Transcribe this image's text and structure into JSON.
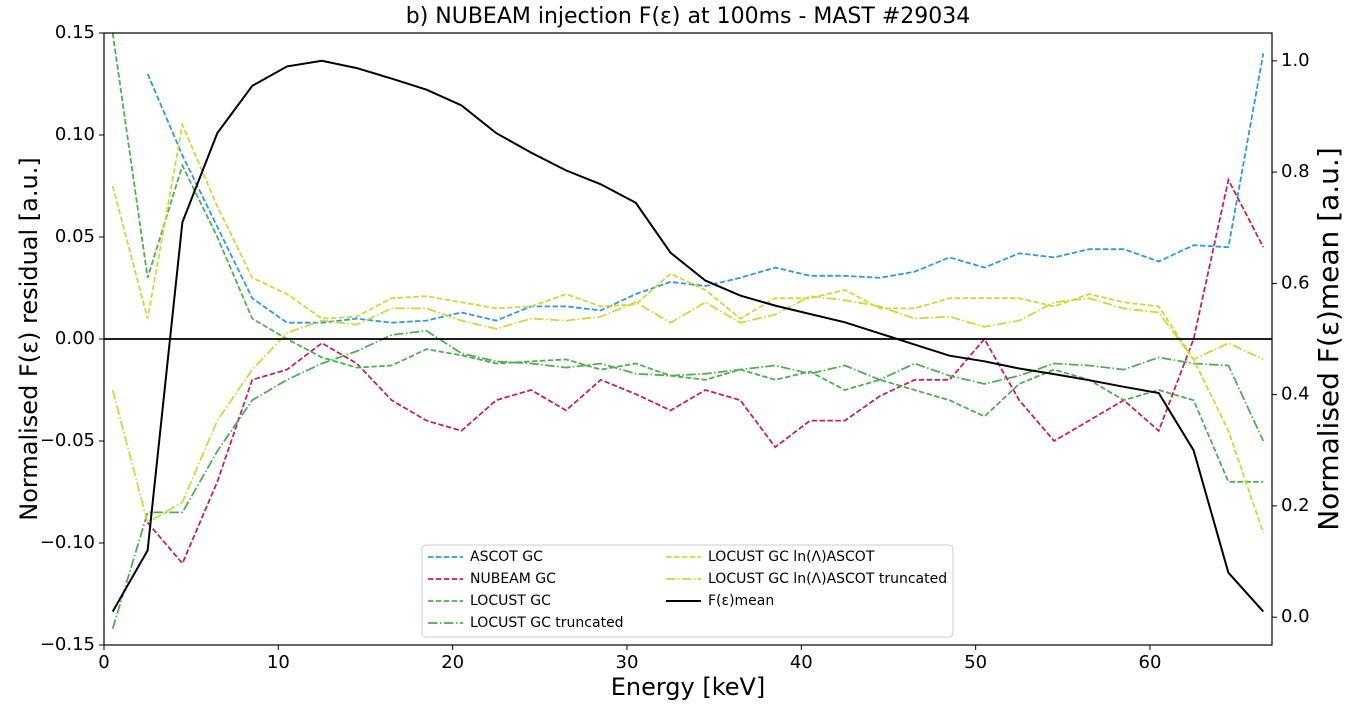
{
  "chart_data": {
    "type": "line",
    "title": "b) NUBEAM injection F(ε) at 100ms - MAST #29034",
    "x_label": "Energy [keV]",
    "y_label": "Normalised F(ε) residual [a.u.]",
    "y2_label": "Normalised F(ε)mean [a.u.]",
    "x": [
      0.5,
      2.5,
      4.5,
      6.5,
      8.5,
      10.5,
      12.5,
      14.5,
      16.5,
      18.5,
      20.5,
      22.5,
      24.5,
      26.5,
      28.5,
      30.5,
      32.5,
      34.5,
      36.5,
      38.5,
      40.5,
      42.5,
      44.5,
      46.5,
      48.5,
      50.5,
      52.5,
      54.5,
      56.5,
      58.5,
      60.5,
      62.5,
      64.5,
      66.5
    ],
    "xlim": [
      0,
      67
    ],
    "xticks": [
      0,
      10,
      20,
      30,
      40,
      50,
      60
    ],
    "ylim": [
      -0.15,
      0.15
    ],
    "yticks": [
      {
        "value": -0.15,
        "label": "−0.15"
      },
      {
        "value": -0.1,
        "label": "−0.10"
      },
      {
        "value": -0.05,
        "label": "−0.05"
      },
      {
        "value": 0,
        "label": "0.00"
      },
      {
        "value": 0.05,
        "label": "0.05"
      },
      {
        "value": 0.1,
        "label": "0.10"
      },
      {
        "value": 0.15,
        "label": "0.15"
      }
    ],
    "y2lim": [
      -0.05,
      1.05
    ],
    "y2ticks": [
      {
        "value": 0,
        "label": "0.0"
      },
      0.2,
      0.4,
      0.6,
      0.8,
      {
        "value": 1,
        "label": "1.0"
      }
    ],
    "hlines": [
      0
    ],
    "legend": "lower center",
    "series": [
      {
        "name": "ASCOT GC",
        "color": "#2a9be0",
        "linestyle": "dashed",
        "values": [
          null,
          0.13,
          0.09,
          0.055,
          0.02,
          0.008,
          0.008,
          0.01,
          0.008,
          0.009,
          0.013,
          0.009,
          0.016,
          0.016,
          0.014,
          0.022,
          0.028,
          0.026,
          0.03,
          0.035,
          0.031,
          0.031,
          0.03,
          0.033,
          0.04,
          0.035,
          0.042,
          0.04,
          0.044,
          0.044,
          0.038,
          0.046,
          0.045,
          0.14
        ]
      },
      {
        "name": "NUBEAM GC",
        "color": "#c8205a",
        "linestyle": "dashed",
        "values": [
          null,
          -0.09,
          -0.11,
          -0.07,
          -0.02,
          -0.015,
          -0.002,
          -0.012,
          -0.03,
          -0.04,
          -0.045,
          -0.03,
          -0.025,
          -0.035,
          -0.02,
          -0.027,
          -0.035,
          -0.025,
          -0.03,
          -0.053,
          -0.04,
          -0.04,
          -0.028,
          -0.02,
          -0.02,
          0.0,
          -0.03,
          -0.05,
          -0.04,
          -0.03,
          -0.045,
          0.0,
          0.078,
          0.045
        ]
      },
      {
        "name": "LOCUST GC",
        "color": "#4caf50",
        "linestyle": "dashed",
        "values": [
          0.15,
          0.03,
          0.085,
          0.05,
          0.01,
          0.0,
          -0.009,
          -0.014,
          -0.013,
          -0.005,
          -0.008,
          -0.012,
          -0.011,
          -0.01,
          -0.015,
          -0.012,
          -0.018,
          -0.02,
          -0.015,
          -0.02,
          -0.016,
          -0.025,
          -0.02,
          -0.025,
          -0.03,
          -0.038,
          -0.022,
          -0.015,
          -0.02,
          -0.03,
          -0.025,
          -0.03,
          -0.07,
          -0.07
        ]
      },
      {
        "name": "LOCUST GC truncated",
        "color": "#4caf50",
        "linestyle": "dashdot",
        "values": [
          -0.142,
          -0.085,
          -0.085,
          -0.055,
          -0.03,
          -0.02,
          -0.012,
          -0.006,
          0.002,
          0.004,
          -0.007,
          -0.011,
          -0.012,
          -0.014,
          -0.012,
          -0.017,
          -0.018,
          -0.017,
          -0.015,
          -0.013,
          -0.017,
          -0.013,
          -0.02,
          -0.012,
          -0.018,
          -0.022,
          -0.018,
          -0.012,
          -0.013,
          -0.015,
          -0.009,
          -0.012,
          -0.013,
          -0.05
        ]
      },
      {
        "name": "LOCUST GC ln(Λ)ASCOT",
        "color": "#c9da3a",
        "linestyle": "dashed",
        "values": [
          0.075,
          0.01,
          0.105,
          0.065,
          0.03,
          0.022,
          0.01,
          0.011,
          0.02,
          0.021,
          0.018,
          0.015,
          0.016,
          0.022,
          0.016,
          0.017,
          0.032,
          0.024,
          0.01,
          0.02,
          0.02,
          0.024,
          0.015,
          0.015,
          0.02,
          0.02,
          0.02,
          0.016,
          0.022,
          0.018,
          0.016,
          -0.01,
          -0.045,
          -0.095
        ]
      },
      {
        "name": "LOCUST GC ln(Λ)ASCOT truncated",
        "color": "#c9da3a",
        "linestyle": "dashdot",
        "values": [
          -0.025,
          -0.09,
          -0.08,
          -0.04,
          -0.015,
          0.003,
          0.009,
          0.007,
          0.015,
          0.015,
          0.009,
          0.005,
          0.01,
          0.009,
          0.011,
          0.018,
          0.008,
          0.018,
          0.008,
          0.012,
          0.021,
          0.019,
          0.016,
          0.01,
          0.011,
          0.006,
          0.009,
          0.018,
          0.02,
          0.015,
          0.013,
          -0.01,
          -0.002,
          -0.01
        ]
      },
      {
        "name": "F(ε)mean",
        "color": "#000000",
        "linestyle": "solid",
        "axis": "y2",
        "values": [
          0.01,
          0.12,
          0.71,
          0.87,
          0.955,
          0.99,
          1.0,
          0.987,
          0.968,
          0.948,
          0.92,
          0.87,
          0.835,
          0.803,
          0.778,
          0.745,
          0.655,
          0.605,
          0.578,
          0.56,
          0.545,
          0.53,
          0.51,
          0.49,
          0.47,
          0.46,
          0.447,
          0.437,
          0.426,
          0.414,
          0.403,
          0.3,
          0.08,
          0.01
        ]
      }
    ]
  }
}
